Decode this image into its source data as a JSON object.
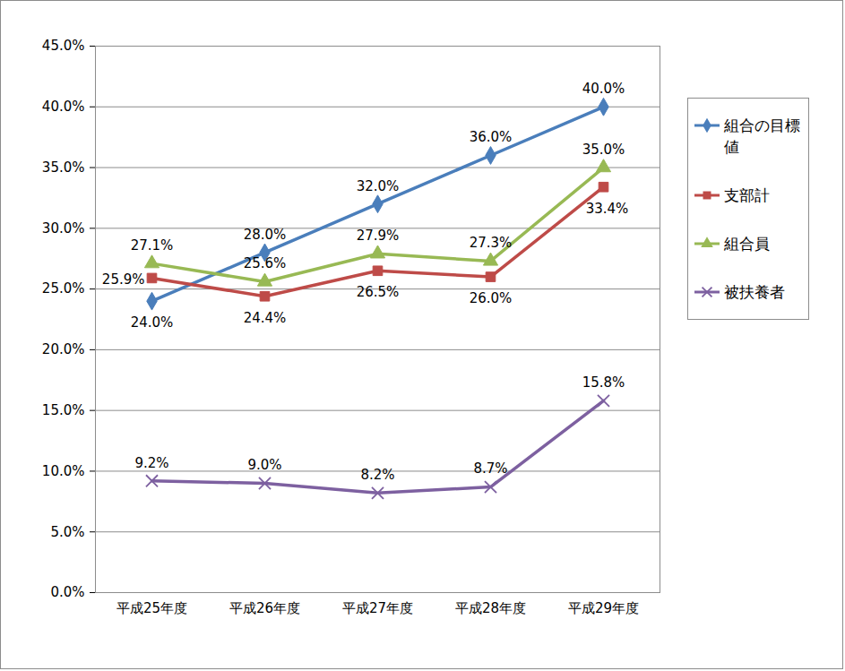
{
  "chart_data": {
    "type": "line",
    "categories": [
      "平成25年度",
      "平成26年度",
      "平成27年度",
      "平成28年度",
      "平成29年度"
    ],
    "series": [
      {
        "name": "組合の目標値",
        "color": "#4a7ebb",
        "marker": "diamond",
        "values": [
          24.0,
          28.0,
          32.0,
          36.0,
          40.0
        ],
        "value_labels": [
          "24.0%",
          "28.0%",
          "32.0%",
          "36.0%",
          "40.0%"
        ]
      },
      {
        "name": "支部計",
        "color": "#be4b48",
        "marker": "square",
        "values": [
          25.9,
          24.4,
          26.5,
          26.0,
          33.4
        ],
        "value_labels": [
          "25.9%",
          "24.4%",
          "26.5%",
          "26.0%",
          "33.4%"
        ]
      },
      {
        "name": "組合員",
        "color": "#98b954",
        "marker": "triangle",
        "values": [
          27.1,
          25.6,
          27.9,
          27.3,
          35.0
        ],
        "value_labels": [
          "27.1%",
          "25.6%",
          "27.9%",
          "27.3%",
          "35.0%"
        ]
      },
      {
        "name": "被扶養者",
        "color": "#7d60a0",
        "marker": "x",
        "values": [
          9.2,
          9.0,
          8.2,
          8.7,
          15.8
        ],
        "value_labels": [
          "9.2%",
          "9.0%",
          "8.2%",
          "8.7%",
          "15.8%"
        ]
      }
    ],
    "ylim": [
      0,
      45
    ],
    "yticks": [
      {
        "value": 0,
        "label": "0.0%"
      },
      {
        "value": 5,
        "label": "5.0%"
      },
      {
        "value": 10,
        "label": "10.0%"
      },
      {
        "value": 15,
        "label": "15.0%"
      },
      {
        "value": 20,
        "label": "20.0%"
      },
      {
        "value": 25,
        "label": "25.0%"
      },
      {
        "value": 30,
        "label": "30.0%"
      },
      {
        "value": 35,
        "label": "35.0%"
      },
      {
        "value": 40,
        "label": "40.0%"
      },
      {
        "value": 45,
        "label": "45.0%"
      }
    ],
    "grid": true,
    "legend": "right",
    "data_labels": true
  }
}
